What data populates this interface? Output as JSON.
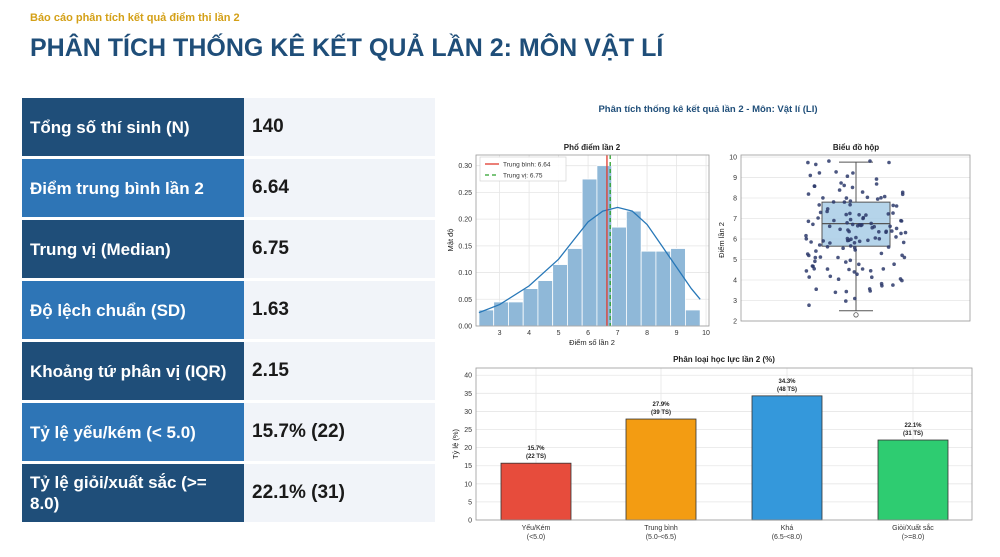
{
  "header": {
    "kicker": "Báo cáo phân tích kết quả điểm thi lần 2",
    "title": "PHÂN TÍCH THỐNG KÊ KẾT QUẢ LẦN 2: MÔN VẬT LÍ"
  },
  "stats": [
    {
      "label": "Tổng số thí sinh (N)",
      "value": "140"
    },
    {
      "label": "Điểm trung bình lần 2",
      "value": "6.64"
    },
    {
      "label": "Trung vị (Median)",
      "value": "6.75"
    },
    {
      "label": "Độ lệch chuẩn (SD)",
      "value": "1.63"
    },
    {
      "label": "Khoảng tứ phân vị (IQR)",
      "value": "2.15"
    },
    {
      "label": "Tỷ lệ yếu/kém (< 5.0)",
      "value": "15.7% (22)"
    },
    {
      "label": "Tỷ lệ giỏi/xuất sắc (>= 8.0)",
      "value": "22.1% (31)"
    }
  ],
  "figure_title": "Phân tích thống kê kết quả lần 2 - Môn: Vật lí (LI)",
  "colors": {
    "navy": "#1f4e79",
    "blue": "#2e75b6",
    "gold": "#d4a017",
    "hist": "#8fb8d8",
    "kde": "#2878b8",
    "mean_line": "#e03a2e",
    "median_line": "#2ca02c"
  },
  "chart_data": [
    {
      "type": "histogram",
      "title": "Phổ điểm lần 2",
      "xlabel": "Điểm số lần 2",
      "ylabel": "Mật độ",
      "xlim": [
        2.2,
        10.1
      ],
      "ylim": [
        0,
        0.32
      ],
      "xticks": [
        "3",
        "4",
        "5",
        "6",
        "7",
        "8",
        "9",
        "10"
      ],
      "yticks": [
        "0.00",
        "0.05",
        "0.10",
        "0.15",
        "0.20",
        "0.25",
        "0.30"
      ],
      "bin_edges": [
        2.3,
        2.8,
        3.3,
        3.8,
        4.3,
        4.8,
        5.3,
        5.8,
        6.3,
        6.8,
        7.3,
        7.8,
        8.3,
        8.8,
        9.3,
        9.8
      ],
      "densities": [
        0.03,
        0.045,
        0.045,
        0.07,
        0.085,
        0.115,
        0.145,
        0.275,
        0.3,
        0.185,
        0.215,
        0.14,
        0.14,
        0.145,
        0.03
      ],
      "kde": [
        [
          2.3,
          0.025
        ],
        [
          3.0,
          0.04
        ],
        [
          4.0,
          0.075
        ],
        [
          5.0,
          0.125
        ],
        [
          5.5,
          0.16
        ],
        [
          6.0,
          0.195
        ],
        [
          6.5,
          0.215
        ],
        [
          7.0,
          0.222
        ],
        [
          7.5,
          0.215
        ],
        [
          8.0,
          0.19
        ],
        [
          8.5,
          0.15
        ],
        [
          9.0,
          0.11
        ],
        [
          9.5,
          0.07
        ],
        [
          9.8,
          0.05
        ]
      ],
      "mean": 6.64,
      "median": 6.75,
      "legend": [
        "Trung bình: 6.64",
        "Trung vị: 6.75"
      ],
      "legend_position": "top-left",
      "grid": true
    },
    {
      "type": "boxplot",
      "title": "Biểu đồ hộp",
      "ylabel": "Điểm lần 2",
      "ylim": [
        2,
        10.1
      ],
      "yticks": [
        "2",
        "3",
        "4",
        "5",
        "6",
        "7",
        "8",
        "9",
        "10"
      ],
      "q1": 5.65,
      "median": 6.75,
      "q3": 7.8,
      "whisker_low": 2.5,
      "whisker_high": 9.75,
      "outliers": [
        2.3
      ],
      "grid": true
    },
    {
      "type": "bar",
      "title": "Phân loại học lực lần 2 (%)",
      "ylabel": "Tỷ lệ (%)",
      "ylim": [
        0,
        42
      ],
      "yticks": [
        "0",
        "5",
        "10",
        "15",
        "20",
        "25",
        "30",
        "35",
        "40"
      ],
      "categories": [
        {
          "name": "Yếu/Kém",
          "range": "(<5.0)"
        },
        {
          "name": "Trung bình",
          "range": "(5.0-<6.5)"
        },
        {
          "name": "Khá",
          "range": "(6.5-<8.0)"
        },
        {
          "name": "Giỏi/Xuất sắc",
          "range": "(>=8.0)"
        }
      ],
      "values": [
        15.7,
        27.9,
        34.3,
        22.1
      ],
      "value_labels": [
        "15.7%",
        "27.9%",
        "34.3%",
        "22.1%"
      ],
      "count_labels": [
        "(22 TS)",
        "(39 TS)",
        "(48 TS)",
        "(31 TS)"
      ],
      "bar_colors": [
        "#e74c3c",
        "#f39c12",
        "#3498db",
        "#2ecc71"
      ],
      "grid": true
    }
  ]
}
